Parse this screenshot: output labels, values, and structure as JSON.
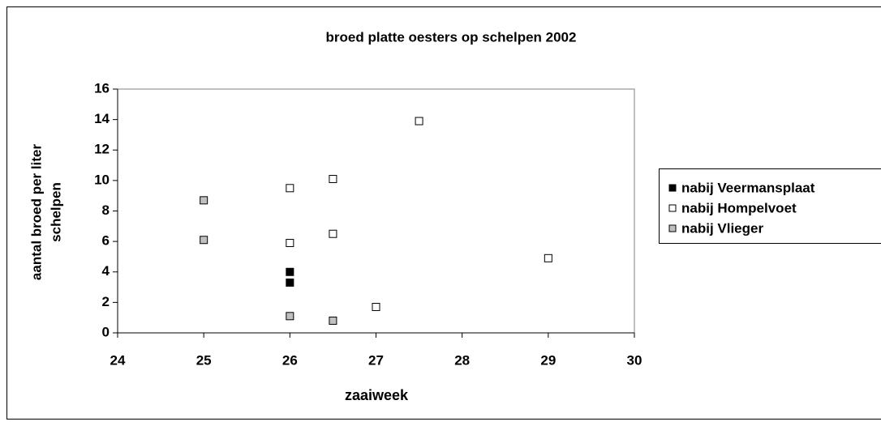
{
  "chart_data": {
    "type": "scatter",
    "title": "broed platte oesters op schelpen 2002",
    "xlabel": "zaaiweek",
    "ylabel": [
      "aantal broed per liter",
      "schelpen"
    ],
    "xlim": [
      24,
      30
    ],
    "xticks": [
      24,
      25,
      26,
      27,
      28,
      29,
      30
    ],
    "ylim": [
      0,
      16
    ],
    "yticks": [
      0,
      2,
      4,
      6,
      8,
      10,
      12,
      14,
      16
    ],
    "grid": false,
    "legend": "right",
    "series": [
      {
        "name": "nabij Veermansplaat",
        "color": "#000000",
        "x": [
          26,
          26
        ],
        "values": [
          4.0,
          3.3
        ]
      },
      {
        "name": "nabij Hompelvoet",
        "color": "#ffffff",
        "x": [
          26,
          26.5,
          27.5,
          26,
          26.5,
          27,
          29
        ],
        "values": [
          9.5,
          10.1,
          13.9,
          5.9,
          6.5,
          1.7,
          4.9
        ]
      },
      {
        "name": "nabij Vlieger",
        "color": "#c0c0c0",
        "x": [
          25,
          25,
          26,
          26.5
        ],
        "values": [
          8.7,
          6.1,
          1.1,
          0.8
        ]
      }
    ]
  }
}
